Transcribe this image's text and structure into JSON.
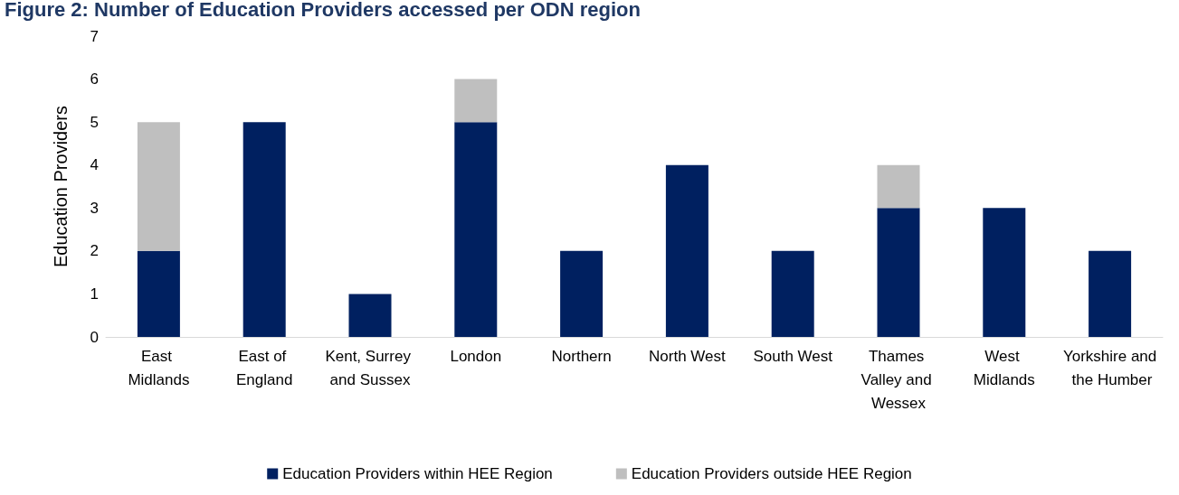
{
  "chart_data": {
    "type": "bar",
    "title": "Figure 2: Number of Education Providers accessed per ODN region",
    "ylabel": "Education Providers",
    "categories": [
      "East Midlands",
      "East of England",
      "Kent, Surrey and Sussex",
      "London",
      "Northern",
      "North West",
      "South West",
      "Thames Valley and Wessex",
      "West Midlands",
      "Yorkshire and the Humber"
    ],
    "series": [
      {
        "name": "Education Providers within HEE Region",
        "color": "#002060",
        "values": [
          2,
          5,
          1,
          5,
          2,
          4,
          2,
          3,
          3,
          2
        ]
      },
      {
        "name": "Education Providers outside HEE Region",
        "color": "#bfbfbf",
        "values": [
          3,
          0,
          0,
          1,
          0,
          0,
          0,
          1,
          0,
          0
        ]
      }
    ],
    "stacked": true,
    "ylim": [
      0,
      7
    ],
    "yticks": [
      0,
      1,
      2,
      3,
      4,
      5,
      6,
      7
    ],
    "grid": false,
    "legend": "bottom"
  }
}
